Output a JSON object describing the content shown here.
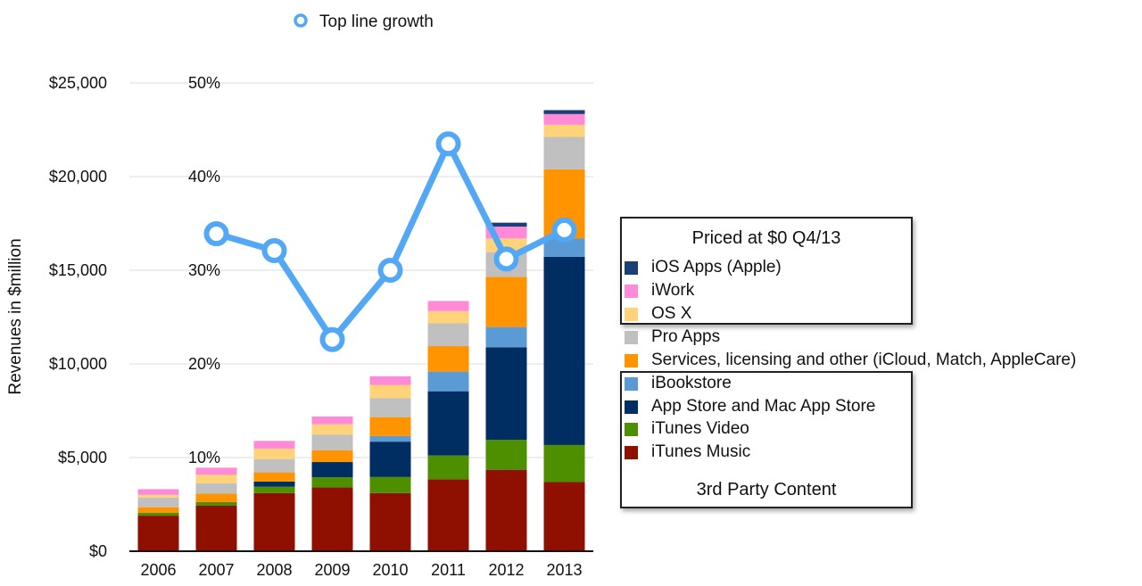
{
  "chart_data": {
    "type": "bar",
    "stacked": true,
    "categories": [
      "2006",
      "2007",
      "2008",
      "2009",
      "2010",
      "2011",
      "2012",
      "2013"
    ],
    "ylabel": "Revenues in $million",
    "ylim": [
      0,
      25000
    ],
    "yticks": [
      "$0",
      "$5,000",
      "$10,000",
      "$15,000",
      "$20,000",
      "$25,000"
    ],
    "y2lim": [
      0,
      50
    ],
    "y2ticks": [
      "10%",
      "20%",
      "30%",
      "40%",
      "50%"
    ],
    "grid": true,
    "series": [
      {
        "name": "iTunes Music",
        "color": "#8f0f00",
        "values": [
          1900,
          2430,
          3100,
          3410,
          3100,
          3840,
          4350,
          3690
        ]
      },
      {
        "name": "iTunes Video",
        "color": "#4e8f00",
        "values": [
          150,
          190,
          350,
          540,
          860,
          1270,
          1600,
          1980
        ]
      },
      {
        "name": "App Store and Mac App Store",
        "color": "#002e63",
        "values": [
          0,
          0,
          270,
          810,
          1890,
          3430,
          4940,
          10050
        ]
      },
      {
        "name": "iBookstore",
        "color": "#5b9bd5",
        "values": [
          0,
          0,
          0,
          0,
          300,
          1050,
          1080,
          990
        ]
      },
      {
        "name": "Services, licensing and other (iCloud, Match, AppleCare)",
        "color": "#ff9300",
        "values": [
          300,
          460,
          490,
          630,
          1010,
          1360,
          2680,
          3680
        ]
      },
      {
        "name": "Pro Apps",
        "color": "#c0c0c0",
        "values": [
          520,
          550,
          710,
          840,
          1010,
          1220,
          1320,
          1730
        ]
      },
      {
        "name": "OS X",
        "color": "#ffd37a",
        "values": [
          140,
          460,
          560,
          550,
          710,
          650,
          730,
          650
        ]
      },
      {
        "name": "iWork",
        "color": "#ff8ad8",
        "values": [
          300,
          370,
          410,
          410,
          460,
          540,
          630,
          570
        ]
      },
      {
        "name": "iOS Apps (Apple)",
        "color": "#1b4077",
        "values": [
          0,
          0,
          0,
          0,
          0,
          0,
          210,
          210
        ]
      }
    ],
    "line": {
      "name": "Top line growth",
      "color": "#52a8f5",
      "axis": "right",
      "unit": "%",
      "values": [
        null,
        33.9,
        32.1,
        22.6,
        30.0,
        43.5,
        31.2,
        34.3
      ]
    },
    "legend": {
      "top": "Top line growth",
      "placement": "right",
      "group_free_title": "Priced at $0 Q4/13",
      "group_third_party_title": "3rd Party Content",
      "order": [
        "iOS Apps (Apple)",
        "iWork",
        "OS X",
        "Pro Apps",
        "Services, licensing and other (iCloud, Match, AppleCare)",
        "iBookstore",
        "App Store and Mac App Store",
        "iTunes Video",
        "iTunes Music"
      ]
    }
  }
}
